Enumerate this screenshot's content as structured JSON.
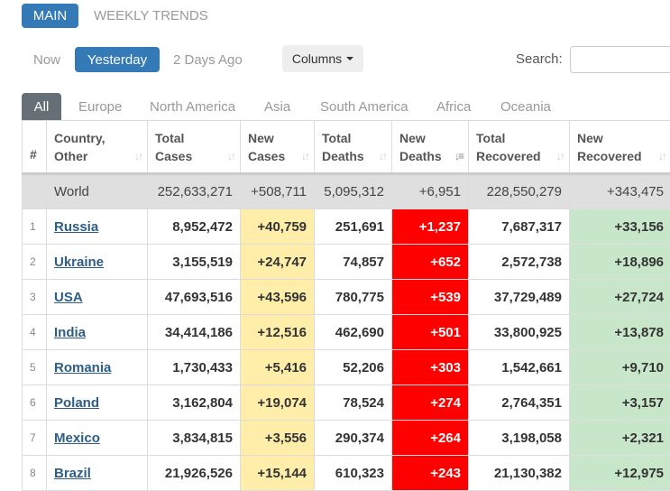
{
  "top_tabs": [
    "MAIN",
    "WEEKLY TRENDS"
  ],
  "day_tabs": [
    "Now",
    "Yesterday",
    "2 Days Ago"
  ],
  "columns_label": "Columns",
  "search_label": "Search:",
  "search_value": "",
  "region_tabs": [
    "All",
    "Europe",
    "North America",
    "Asia",
    "South America",
    "Africa",
    "Oceania"
  ],
  "headers": [
    {
      "line1": "#",
      "line2": ""
    },
    {
      "line1": "Country,",
      "line2": "Other"
    },
    {
      "line1": "Total",
      "line2": "Cases"
    },
    {
      "line1": "New",
      "line2": "Cases"
    },
    {
      "line1": "Total",
      "line2": "Deaths"
    },
    {
      "line1": "New",
      "line2": "Deaths"
    },
    {
      "line1": "Total",
      "line2": "Recovered"
    },
    {
      "line1": "New",
      "line2": "Recovered"
    }
  ],
  "sorted_column": "New Deaths",
  "colors": {
    "primary": "#337ab7",
    "new_cases_bg": "#ffeeaa",
    "new_deaths_bg": "#ff0000",
    "new_recovered_bg": "#c8e6c9",
    "world_bg": "#dfdfdf"
  },
  "world": {
    "country": "World",
    "total_cases": "252,633,271",
    "new_cases": "+508,711",
    "total_deaths": "5,095,312",
    "new_deaths": "+6,951",
    "total_recovered": "228,550,279",
    "new_recovered": "+343,475"
  },
  "rows": [
    {
      "num": "1",
      "country": "Russia",
      "total_cases": "8,952,472",
      "new_cases": "+40,759",
      "total_deaths": "251,691",
      "new_deaths": "+1,237",
      "total_recovered": "7,687,317",
      "new_recovered": "+33,156"
    },
    {
      "num": "2",
      "country": "Ukraine",
      "total_cases": "3,155,519",
      "new_cases": "+24,747",
      "total_deaths": "74,857",
      "new_deaths": "+652",
      "total_recovered": "2,572,738",
      "new_recovered": "+18,896"
    },
    {
      "num": "3",
      "country": "USA",
      "total_cases": "47,693,516",
      "new_cases": "+43,596",
      "total_deaths": "780,775",
      "new_deaths": "+539",
      "total_recovered": "37,729,489",
      "new_recovered": "+27,724"
    },
    {
      "num": "4",
      "country": "India",
      "total_cases": "34,414,186",
      "new_cases": "+12,516",
      "total_deaths": "462,690",
      "new_deaths": "+501",
      "total_recovered": "33,800,925",
      "new_recovered": "+13,878"
    },
    {
      "num": "5",
      "country": "Romania",
      "total_cases": "1,730,433",
      "new_cases": "+5,416",
      "total_deaths": "52,206",
      "new_deaths": "+303",
      "total_recovered": "1,542,661",
      "new_recovered": "+9,710"
    },
    {
      "num": "6",
      "country": "Poland",
      "total_cases": "3,162,804",
      "new_cases": "+19,074",
      "total_deaths": "78,524",
      "new_deaths": "+274",
      "total_recovered": "2,764,351",
      "new_recovered": "+3,157"
    },
    {
      "num": "7",
      "country": "Mexico",
      "total_cases": "3,834,815",
      "new_cases": "+3,556",
      "total_deaths": "290,374",
      "new_deaths": "+264",
      "total_recovered": "3,198,058",
      "new_recovered": "+2,321"
    },
    {
      "num": "8",
      "country": "Brazil",
      "total_cases": "21,926,526",
      "new_cases": "+15,144",
      "total_deaths": "610,323",
      "new_deaths": "+243",
      "total_recovered": "21,130,382",
      "new_recovered": "+12,975"
    }
  ]
}
